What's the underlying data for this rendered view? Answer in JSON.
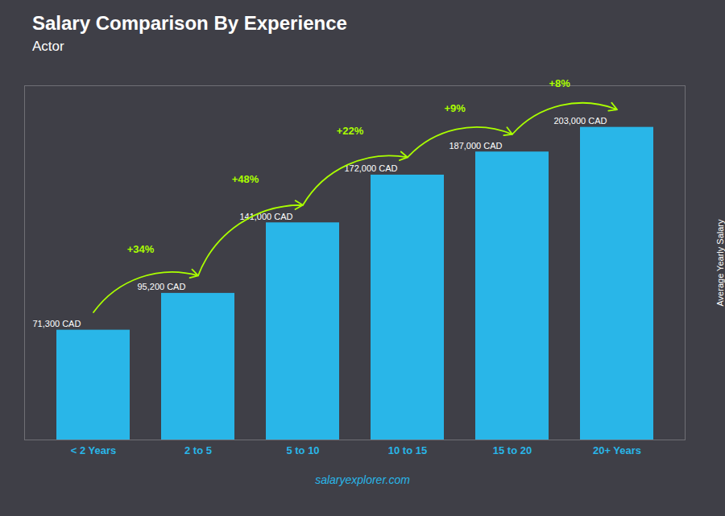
{
  "chart_data": {
    "type": "bar",
    "title": "Salary Comparison By Experience",
    "subtitle": "Actor",
    "ylabel": "Average Yearly Salary",
    "caption": "salaryexplorer.com",
    "categories": [
      "< 2 Years",
      "2 to 5",
      "5 to 10",
      "10 to 15",
      "15 to 20",
      "20+ Years"
    ],
    "values": [
      71300,
      95200,
      141000,
      172000,
      187000,
      203000
    ],
    "value_labels": [
      "71,300 CAD",
      "95,200 CAD",
      "141,000 CAD",
      "172,000 CAD",
      "187,000 CAD",
      "203,000 CAD"
    ],
    "data_labels": true,
    "color": "#29b6e8",
    "ylim": [
      0,
      230000
    ],
    "tick_labels": "x",
    "grid": false,
    "annotations": [
      {
        "text": "+34%",
        "color": "#aaff00"
      },
      {
        "text": "+48%",
        "color": "#aaff00"
      },
      {
        "text": "+22%",
        "color": "#aaff00"
      },
      {
        "text": "+9%",
        "color": "#aaff00"
      },
      {
        "text": "+8%",
        "color": "#aaff00"
      }
    ]
  }
}
